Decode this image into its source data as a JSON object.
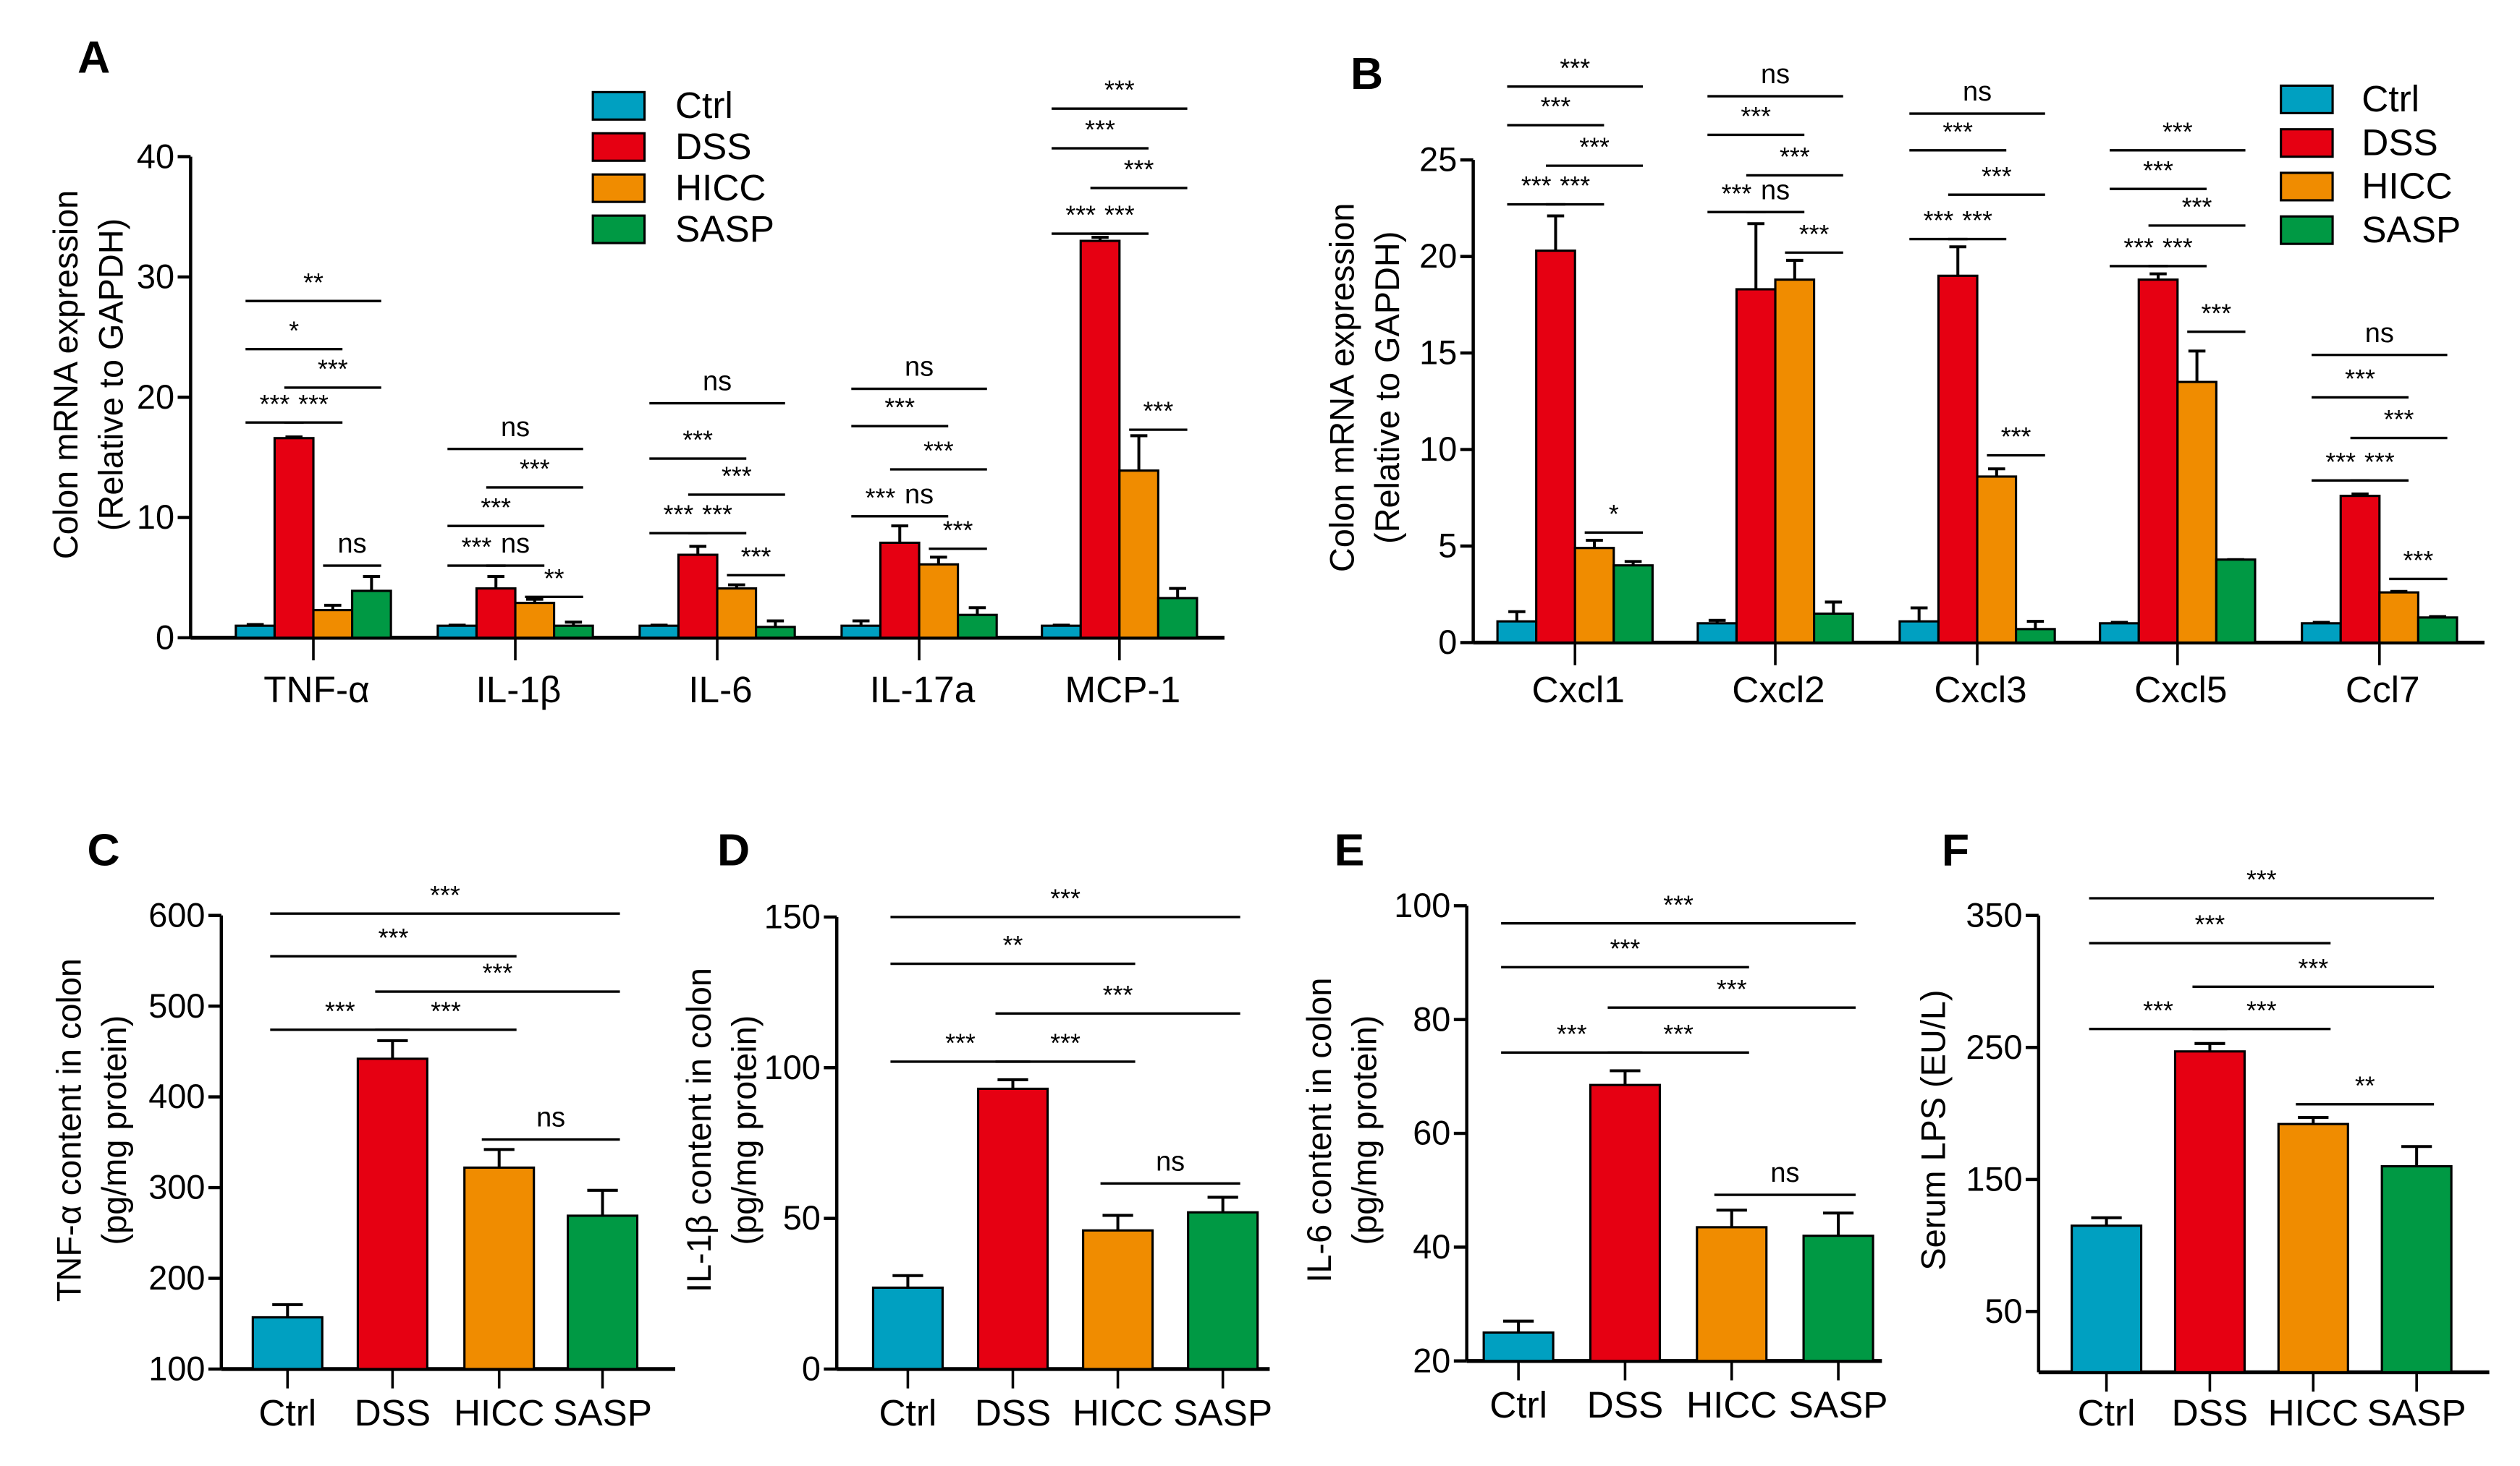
{
  "colors": {
    "Ctrl": "#00a0c1",
    "DSS": "#e60012",
    "HICC": "#f08c00",
    "SASP": "#009944"
  },
  "chart_data": [
    {
      "panel": "A",
      "type": "bar",
      "ylabel": [
        "Colon mRNA expression",
        "(Relative to GAPDH)"
      ],
      "ylim": [
        0,
        40
      ],
      "yticks": [
        "0",
        "10",
        "20",
        "30",
        "40"
      ],
      "categories": [
        "TNF-α",
        "IL-1β",
        "IL-6",
        "IL-17a",
        "MCP-1"
      ],
      "legend": {
        "placement": "top-center",
        "entries": [
          "Ctrl",
          "DSS",
          "HICC",
          "SASP"
        ]
      },
      "series": [
        {
          "name": "Ctrl",
          "values": [
            1.0,
            1.0,
            1.0,
            1.0,
            1.0
          ],
          "errors": [
            0.1,
            0.05,
            0.05,
            0.4,
            0.05
          ]
        },
        {
          "name": "DSS",
          "values": [
            16.6,
            4.1,
            6.9,
            7.9,
            33.0
          ],
          "errors": [
            0.1,
            1.0,
            0.7,
            1.4,
            0.3
          ]
        },
        {
          "name": "HICC",
          "values": [
            2.3,
            2.9,
            4.1,
            6.1,
            13.9
          ],
          "errors": [
            0.4,
            0.3,
            0.3,
            0.6,
            2.9
          ]
        },
        {
          "name": "SASP",
          "values": [
            3.9,
            1.0,
            0.9,
            1.9,
            3.3
          ],
          "errors": [
            1.2,
            0.3,
            0.5,
            0.6,
            0.8
          ]
        }
      ],
      "comparisons": [
        {
          "category": 0,
          "from": "Ctrl",
          "to": "SASP",
          "y": 28.0,
          "label": "**"
        },
        {
          "category": 0,
          "from": "Ctrl",
          "to": "HICC",
          "y": 24.0,
          "label": "*"
        },
        {
          "category": 0,
          "from": "DSS",
          "to": "SASP",
          "y": 20.8,
          "label": "***"
        },
        {
          "category": 0,
          "from": "Ctrl",
          "to": "DSS",
          "y": 17.9,
          "label": "***"
        },
        {
          "category": 0,
          "from": "DSS",
          "to": "HICC",
          "y": 17.9,
          "label": "***"
        },
        {
          "category": 0,
          "from": "HICC",
          "to": "SASP",
          "y": 6.0,
          "label": "ns"
        },
        {
          "category": 1,
          "from": "Ctrl",
          "to": "SASP",
          "y": 15.7,
          "label": "ns"
        },
        {
          "category": 1,
          "from": "DSS",
          "to": "SASP",
          "y": 12.5,
          "label": "***"
        },
        {
          "category": 1,
          "from": "Ctrl",
          "to": "HICC",
          "y": 9.3,
          "label": "***"
        },
        {
          "category": 1,
          "from": "Ctrl",
          "to": "DSS",
          "y": 6.0,
          "label": "***"
        },
        {
          "category": 1,
          "from": "DSS",
          "to": "HICC",
          "y": 6.0,
          "label": "ns"
        },
        {
          "category": 1,
          "from": "HICC",
          "to": "SASP",
          "y": 3.4,
          "label": "**"
        },
        {
          "category": 2,
          "from": "Ctrl",
          "to": "SASP",
          "y": 19.5,
          "label": "ns"
        },
        {
          "category": 2,
          "from": "Ctrl",
          "to": "HICC",
          "y": 14.9,
          "label": "***"
        },
        {
          "category": 2,
          "from": "DSS",
          "to": "SASP",
          "y": 11.9,
          "label": "***"
        },
        {
          "category": 2,
          "from": "Ctrl",
          "to": "DSS",
          "y": 8.7,
          "label": "***"
        },
        {
          "category": 2,
          "from": "DSS",
          "to": "HICC",
          "y": 8.7,
          "label": "***"
        },
        {
          "category": 2,
          "from": "HICC",
          "to": "SASP",
          "y": 5.2,
          "label": "***"
        },
        {
          "category": 3,
          "from": "Ctrl",
          "to": "SASP",
          "y": 20.7,
          "label": "ns"
        },
        {
          "category": 3,
          "from": "Ctrl",
          "to": "HICC",
          "y": 17.6,
          "label": "***"
        },
        {
          "category": 3,
          "from": "DSS",
          "to": "SASP",
          "y": 14.0,
          "label": "***"
        },
        {
          "category": 3,
          "from": "Ctrl",
          "to": "DSS",
          "y": 10.1,
          "label": "***"
        },
        {
          "category": 3,
          "from": "DSS",
          "to": "HICC",
          "y": 10.1,
          "label": "ns"
        },
        {
          "category": 3,
          "from": "HICC",
          "to": "SASP",
          "y": 7.4,
          "label": "***"
        },
        {
          "category": 4,
          "from": "Ctrl",
          "to": "SASP",
          "y": 44.0,
          "label": "***"
        },
        {
          "category": 4,
          "from": "Ctrl",
          "to": "HICC",
          "y": 40.7,
          "label": "***"
        },
        {
          "category": 4,
          "from": "DSS",
          "to": "SASP",
          "y": 37.4,
          "label": "***"
        },
        {
          "category": 4,
          "from": "Ctrl",
          "to": "DSS",
          "y": 33.6,
          "label": "***"
        },
        {
          "category": 4,
          "from": "DSS",
          "to": "HICC",
          "y": 33.6,
          "label": "***"
        },
        {
          "category": 4,
          "from": "HICC",
          "to": "SASP",
          "y": 17.3,
          "label": "***"
        }
      ]
    },
    {
      "panel": "B",
      "type": "bar",
      "ylabel": [
        "Colon mRNA expression",
        "(Relative to GAPDH)"
      ],
      "ylim": [
        0,
        25
      ],
      "yticks": [
        "0",
        "5",
        "10",
        "15",
        "20",
        "25"
      ],
      "categories": [
        "Cxcl1",
        "Cxcl2",
        "Cxcl3",
        "Cxcl5",
        "Ccl7"
      ],
      "legend": {
        "placement": "top-right",
        "entries": [
          "Ctrl",
          "DSS",
          "HICC",
          "SASP"
        ]
      },
      "series": [
        {
          "name": "Ctrl",
          "values": [
            1.1,
            1.0,
            1.1,
            1.0,
            1.0
          ],
          "errors": [
            0.5,
            0.15,
            0.7,
            0.05,
            0.05
          ]
        },
        {
          "name": "DSS",
          "values": [
            20.3,
            18.3,
            19.0,
            18.8,
            7.6
          ],
          "errors": [
            1.8,
            3.4,
            1.5,
            0.3,
            0.1
          ]
        },
        {
          "name": "HICC",
          "values": [
            4.9,
            18.8,
            8.6,
            13.5,
            2.6
          ],
          "errors": [
            0.4,
            1.0,
            0.4,
            1.6,
            0.05
          ]
        },
        {
          "name": "SASP",
          "values": [
            4.0,
            1.5,
            0.7,
            4.3,
            1.3
          ],
          "errors": [
            0.2,
            0.6,
            0.4,
            0.0,
            0.05
          ]
        }
      ],
      "comparisons": [
        {
          "category": 0,
          "from": "Ctrl",
          "to": "SASP",
          "y": 28.8,
          "label": "***"
        },
        {
          "category": 0,
          "from": "Ctrl",
          "to": "HICC",
          "y": 26.8,
          "label": "***"
        },
        {
          "category": 0,
          "from": "DSS",
          "to": "SASP",
          "y": 24.7,
          "label": "***"
        },
        {
          "category": 0,
          "from": "Ctrl",
          "to": "DSS",
          "y": 22.7,
          "label": "***"
        },
        {
          "category": 0,
          "from": "DSS",
          "to": "HICC",
          "y": 22.7,
          "label": "***"
        },
        {
          "category": 0,
          "from": "HICC",
          "to": "SASP",
          "y": 5.7,
          "label": "*"
        },
        {
          "category": 1,
          "from": "Ctrl",
          "to": "SASP",
          "y": 28.3,
          "label": "ns"
        },
        {
          "category": 1,
          "from": "Ctrl",
          "to": "HICC",
          "y": 26.3,
          "label": "***"
        },
        {
          "category": 1,
          "from": "DSS",
          "to": "SASP",
          "y": 24.2,
          "label": "***"
        },
        {
          "category": 1,
          "from": "Ctrl",
          "to": "DSS",
          "y": 22.3,
          "label": "***"
        },
        {
          "category": 1,
          "from": "DSS",
          "to": "HICC",
          "y": 22.3,
          "label": "ns"
        },
        {
          "category": 1,
          "from": "HICC",
          "to": "SASP",
          "y": 20.2,
          "label": "***"
        },
        {
          "category": 2,
          "from": "Ctrl",
          "to": "SASP",
          "y": 27.4,
          "label": "ns"
        },
        {
          "category": 2,
          "from": "Ctrl",
          "to": "HICC",
          "y": 25.5,
          "label": "***"
        },
        {
          "category": 2,
          "from": "DSS",
          "to": "SASP",
          "y": 23.2,
          "label": "***"
        },
        {
          "category": 2,
          "from": "Ctrl",
          "to": "DSS",
          "y": 20.9,
          "label": "***"
        },
        {
          "category": 2,
          "from": "DSS",
          "to": "HICC",
          "y": 20.9,
          "label": "***"
        },
        {
          "category": 2,
          "from": "HICC",
          "to": "SASP",
          "y": 9.7,
          "label": "***"
        },
        {
          "category": 3,
          "from": "Ctrl",
          "to": "SASP",
          "y": 25.5,
          "label": "***"
        },
        {
          "category": 3,
          "from": "Ctrl",
          "to": "HICC",
          "y": 23.5,
          "label": "***"
        },
        {
          "category": 3,
          "from": "DSS",
          "to": "SASP",
          "y": 21.6,
          "label": "***"
        },
        {
          "category": 3,
          "from": "Ctrl",
          "to": "DSS",
          "y": 19.5,
          "label": "***"
        },
        {
          "category": 3,
          "from": "DSS",
          "to": "HICC",
          "y": 19.5,
          "label": "***"
        },
        {
          "category": 3,
          "from": "HICC",
          "to": "SASP",
          "y": 16.1,
          "label": "***"
        },
        {
          "category": 4,
          "from": "Ctrl",
          "to": "SASP",
          "y": 14.9,
          "label": "ns"
        },
        {
          "category": 4,
          "from": "Ctrl",
          "to": "HICC",
          "y": 12.7,
          "label": "***"
        },
        {
          "category": 4,
          "from": "DSS",
          "to": "SASP",
          "y": 10.6,
          "label": "***"
        },
        {
          "category": 4,
          "from": "Ctrl",
          "to": "DSS",
          "y": 8.4,
          "label": "***"
        },
        {
          "category": 4,
          "from": "DSS",
          "to": "HICC",
          "y": 8.4,
          "label": "***"
        },
        {
          "category": 4,
          "from": "HICC",
          "to": "SASP",
          "y": 3.3,
          "label": "***"
        }
      ]
    },
    {
      "panel": "C",
      "type": "bar",
      "ylabel": [
        "TNF-α content in colon",
        "(pg/mg protein)"
      ],
      "ylim": [
        100,
        600
      ],
      "yticks": [
        "100",
        "200",
        "300",
        "400",
        "500",
        "600"
      ],
      "categories": [
        "Ctrl",
        "DSS",
        "HICC",
        "SASP"
      ],
      "values": [
        157,
        442,
        322,
        269
      ],
      "errors": [
        14,
        20,
        20,
        28
      ],
      "comparisons": [
        {
          "from": "Ctrl",
          "to": "SASP",
          "y": 602,
          "label": "***"
        },
        {
          "from": "Ctrl",
          "to": "HICC",
          "y": 555,
          "label": "***"
        },
        {
          "from": "DSS",
          "to": "SASP",
          "y": 516,
          "label": "***"
        },
        {
          "from": "Ctrl",
          "to": "DSS",
          "y": 474,
          "label": "***"
        },
        {
          "from": "DSS",
          "to": "HICC",
          "y": 474,
          "label": "***"
        },
        {
          "from": "HICC",
          "to": "SASP",
          "y": 353,
          "label": "ns"
        }
      ]
    },
    {
      "panel": "D",
      "type": "bar",
      "ylabel": [
        "IL-1β content in colon",
        "(pg/mg protein)"
      ],
      "ylim": [
        0,
        150
      ],
      "yticks": [
        "0",
        "50",
        "100",
        "150"
      ],
      "categories": [
        "Ctrl",
        "DSS",
        "HICC",
        "SASP"
      ],
      "values": [
        27,
        93,
        46,
        52
      ],
      "errors": [
        4,
        3,
        5,
        5
      ],
      "comparisons": [
        {
          "from": "Ctrl",
          "to": "SASP",
          "y": 150,
          "label": "***"
        },
        {
          "from": "Ctrl",
          "to": "HICC",
          "y": 134.5,
          "label": "**"
        },
        {
          "from": "DSS",
          "to": "SASP",
          "y": 118,
          "label": "***"
        },
        {
          "from": "Ctrl",
          "to": "DSS",
          "y": 102,
          "label": "***"
        },
        {
          "from": "DSS",
          "to": "HICC",
          "y": 102,
          "label": "***"
        },
        {
          "from": "HICC",
          "to": "SASP",
          "y": 61.6,
          "label": "ns"
        }
      ]
    },
    {
      "panel": "E",
      "type": "bar",
      "ylabel": [
        "IL-6 content in colon",
        "(pg/mg protein)"
      ],
      "ylim": [
        20,
        100
      ],
      "yticks": [
        "20",
        "40",
        "60",
        "80",
        "100"
      ],
      "categories": [
        "Ctrl",
        "DSS",
        "HICC",
        "SASP"
      ],
      "values": [
        25,
        68.5,
        43.5,
        42
      ],
      "errors": [
        2,
        2.5,
        3,
        4
      ],
      "comparisons": [
        {
          "from": "Ctrl",
          "to": "SASP",
          "y": 96.9,
          "label": "***"
        },
        {
          "from": "Ctrl",
          "to": "HICC",
          "y": 89.2,
          "label": "***"
        },
        {
          "from": "DSS",
          "to": "SASP",
          "y": 82.1,
          "label": "***"
        },
        {
          "from": "Ctrl",
          "to": "DSS",
          "y": 74.2,
          "label": "***"
        },
        {
          "from": "DSS",
          "to": "HICC",
          "y": 74.2,
          "label": "***"
        },
        {
          "from": "HICC",
          "to": "SASP",
          "y": 49.2,
          "label": "ns"
        }
      ]
    },
    {
      "panel": "F",
      "type": "bar",
      "ylabel": [
        "Serum LPS (EU/L)"
      ],
      "ylim": [
        4,
        350
      ],
      "yticks": [
        "50",
        "150",
        "250",
        "350"
      ],
      "categories": [
        "Ctrl",
        "DSS",
        "HICC",
        "SASP"
      ],
      "values": [
        115,
        247,
        192,
        160
      ],
      "errors": [
        6,
        6,
        5,
        15
      ],
      "comparisons": [
        {
          "from": "Ctrl",
          "to": "SASP",
          "y": 363,
          "label": "***"
        },
        {
          "from": "Ctrl",
          "to": "HICC",
          "y": 329,
          "label": "***"
        },
        {
          "from": "DSS",
          "to": "SASP",
          "y": 296,
          "label": "***"
        },
        {
          "from": "Ctrl",
          "to": "DSS",
          "y": 264,
          "label": "***"
        },
        {
          "from": "DSS",
          "to": "HICC",
          "y": 264,
          "label": "***"
        },
        {
          "from": "HICC",
          "to": "SASP",
          "y": 207,
          "label": "**"
        }
      ]
    }
  ]
}
